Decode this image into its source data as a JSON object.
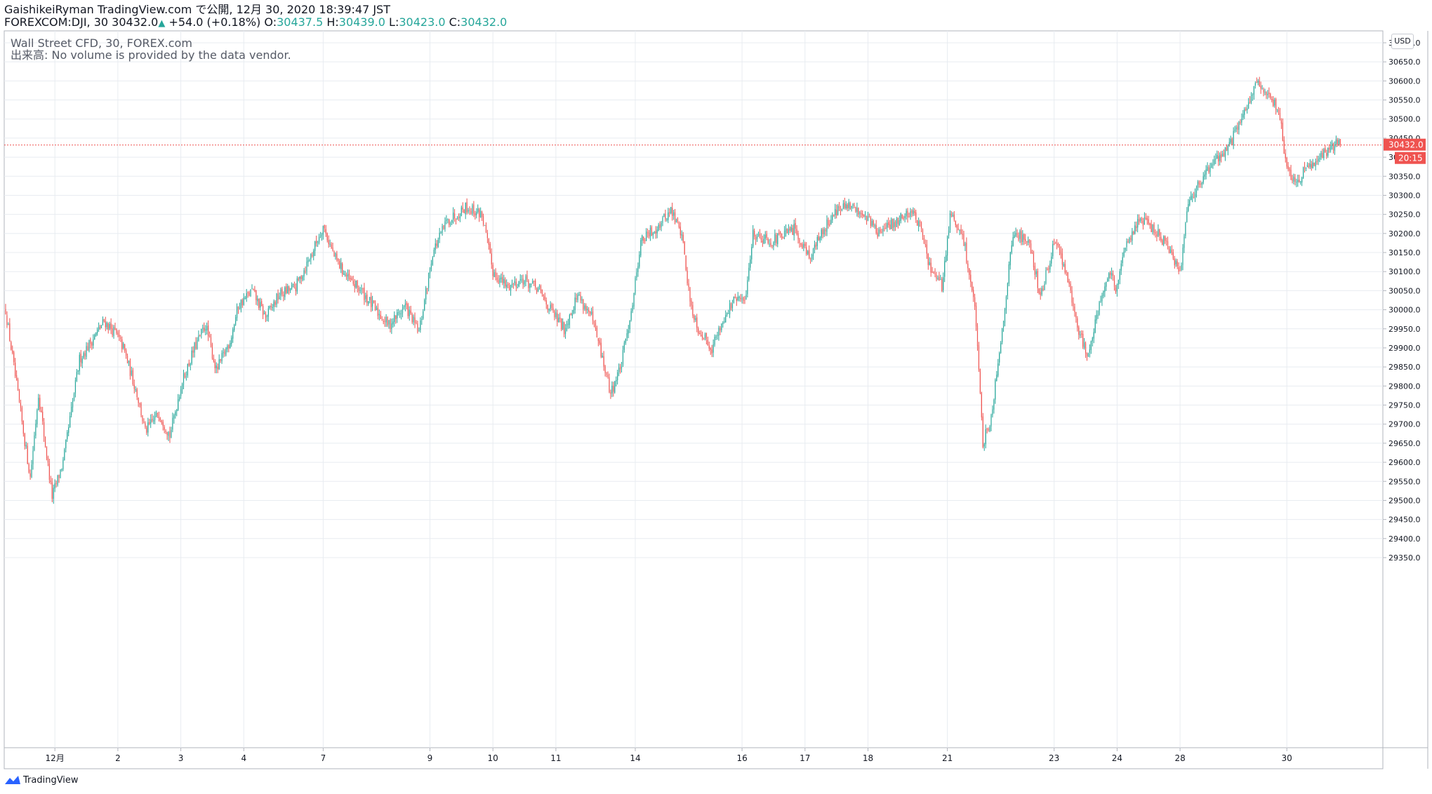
{
  "header": {
    "publish_line": "GaishikeiRyman TradingView.com で公開, 12月 30, 2020 18:39:47 JST",
    "symbol": "FOREXCOM:DJI, 30",
    "last": "30432.0",
    "change": "+54.0 (+0.18%)",
    "o_label": "O:",
    "o_value": "30437.5",
    "h_label": "H:",
    "h_value": "30439.0",
    "l_label": "L:",
    "l_value": "30423.0",
    "c_label": "C:",
    "c_value": "30432.0"
  },
  "overlay": {
    "title": "Wall Street CFD, 30, FOREX.com",
    "volume_note": "出来高: No volume is provided by the data vendor."
  },
  "price_axis": {
    "currency": "USD"
  },
  "current_price": {
    "label": "30432.0",
    "countdown": "20:15"
  },
  "footer": {
    "brand": "TradingView"
  },
  "colors": {
    "up": "#26a69a",
    "down": "#ef5350",
    "grid": "#e8ecf1",
    "text": "#131722"
  },
  "chart_data": {
    "type": "candlestick",
    "ylim": [
      29300,
      30750
    ],
    "y_ticks": [
      29350,
      29400,
      29450,
      29500,
      29550,
      29600,
      29650,
      29700,
      29750,
      29800,
      29850,
      29900,
      29950,
      30000,
      30050,
      30100,
      30150,
      30200,
      30250,
      30300,
      30350,
      30400,
      30450,
      30500,
      30550,
      30600,
      30650,
      30700
    ],
    "x_labels": [
      "12月",
      "2",
      "3",
      "4",
      "7",
      "9",
      "10",
      "11",
      "14",
      "16",
      "17",
      "18",
      "21",
      "23",
      "24",
      "28",
      "30"
    ],
    "x_label_bar_index": [
      36,
      82,
      128,
      174,
      232,
      310,
      356,
      402,
      460,
      538,
      584,
      630,
      688,
      766,
      812,
      858,
      936
    ],
    "bar_count": 976,
    "path_keypoints": [
      [
        0,
        30000
      ],
      [
        8,
        29800
      ],
      [
        18,
        29560
      ],
      [
        24,
        29780
      ],
      [
        34,
        29510
      ],
      [
        42,
        29600
      ],
      [
        54,
        29870
      ],
      [
        72,
        29970
      ],
      [
        80,
        29940
      ],
      [
        86,
        29900
      ],
      [
        96,
        29780
      ],
      [
        102,
        29680
      ],
      [
        112,
        29730
      ],
      [
        120,
        29670
      ],
      [
        128,
        29800
      ],
      [
        138,
        29900
      ],
      [
        146,
        29960
      ],
      [
        154,
        29840
      ],
      [
        164,
        29920
      ],
      [
        170,
        30010
      ],
      [
        180,
        30050
      ],
      [
        190,
        29980
      ],
      [
        200,
        30040
      ],
      [
        212,
        30060
      ],
      [
        224,
        30150
      ],
      [
        232,
        30220
      ],
      [
        240,
        30140
      ],
      [
        250,
        30080
      ],
      [
        260,
        30050
      ],
      [
        270,
        30000
      ],
      [
        280,
        29960
      ],
      [
        292,
        30010
      ],
      [
        302,
        29940
      ],
      [
        312,
        30150
      ],
      [
        322,
        30230
      ],
      [
        336,
        30270
      ],
      [
        348,
        30250
      ],
      [
        356,
        30100
      ],
      [
        366,
        30060
      ],
      [
        378,
        30080
      ],
      [
        390,
        30050
      ],
      [
        398,
        30000
      ],
      [
        408,
        29950
      ],
      [
        418,
        30040
      ],
      [
        428,
        29980
      ],
      [
        434,
        29900
      ],
      [
        442,
        29780
      ],
      [
        450,
        29860
      ],
      [
        458,
        30020
      ],
      [
        464,
        30180
      ],
      [
        474,
        30210
      ],
      [
        486,
        30260
      ],
      [
        494,
        30200
      ],
      [
        500,
        30020
      ],
      [
        506,
        29950
      ],
      [
        516,
        29900
      ],
      [
        526,
        29990
      ],
      [
        534,
        30030
      ],
      [
        540,
        30020
      ],
      [
        546,
        30200
      ],
      [
        560,
        30180
      ],
      [
        576,
        30210
      ],
      [
        588,
        30140
      ],
      [
        596,
        30200
      ],
      [
        606,
        30260
      ],
      [
        616,
        30270
      ],
      [
        628,
        30250
      ],
      [
        638,
        30200
      ],
      [
        650,
        30230
      ],
      [
        662,
        30260
      ],
      [
        668,
        30220
      ],
      [
        676,
        30100
      ],
      [
        684,
        30060
      ],
      [
        690,
        30250
      ],
      [
        700,
        30180
      ],
      [
        708,
        30010
      ],
      [
        714,
        29650
      ],
      [
        720,
        29720
      ],
      [
        728,
        29950
      ],
      [
        736,
        30200
      ],
      [
        748,
        30180
      ],
      [
        756,
        30030
      ],
      [
        766,
        30180
      ],
      [
        774,
        30110
      ],
      [
        782,
        29970
      ],
      [
        790,
        29880
      ],
      [
        798,
        30000
      ],
      [
        806,
        30100
      ],
      [
        812,
        30050
      ],
      [
        818,
        30170
      ],
      [
        828,
        30240
      ],
      [
        836,
        30220
      ],
      [
        846,
        30180
      ],
      [
        858,
        30100
      ],
      [
        864,
        30290
      ],
      [
        874,
        30340
      ],
      [
        882,
        30390
      ],
      [
        890,
        30410
      ],
      [
        898,
        30460
      ],
      [
        906,
        30530
      ],
      [
        914,
        30590
      ],
      [
        922,
        30560
      ],
      [
        930,
        30530
      ],
      [
        936,
        30370
      ],
      [
        942,
        30330
      ],
      [
        950,
        30370
      ],
      [
        958,
        30400
      ],
      [
        966,
        30420
      ],
      [
        972,
        30432
      ]
    ],
    "last_close": 30432.0
  }
}
